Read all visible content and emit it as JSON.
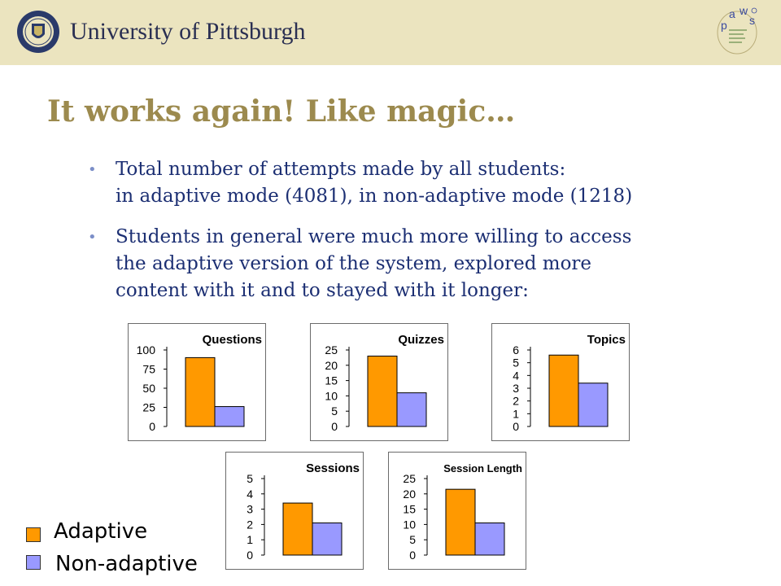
{
  "header": {
    "university": "University of Pittsburgh",
    "seal_icon": "university-seal-icon",
    "logo_icon": "paws-logo-icon",
    "logo_letters": [
      "p",
      "a",
      "w",
      "s"
    ]
  },
  "slide": {
    "title": "It works again! Like magic…",
    "bullets": [
      {
        "lines": [
          "Total number of attempts made by all students:",
          "in adaptive mode (4081), in non-adaptive mode (1218)"
        ]
      },
      {
        "lines": [
          "Students in general were much more willing to access",
          "the adaptive version of the system, explored more",
          "content with it and to stayed with it longer:"
        ]
      }
    ]
  },
  "colors": {
    "adaptive": "#ff9900",
    "non_adaptive": "#9999ff",
    "title": "#9c8a4e",
    "body_text": "#1c2f73",
    "header_bg": "#ebe4bf"
  },
  "legend": {
    "items": [
      "Adaptive",
      "Non-adaptive"
    ]
  },
  "chart_data": [
    {
      "type": "bar",
      "title": "Questions",
      "categories": [
        "Adaptive",
        "Non-adaptive"
      ],
      "values": [
        90,
        26
      ],
      "yticks": [
        0,
        25,
        50,
        75,
        100
      ],
      "ylim": [
        0,
        100
      ]
    },
    {
      "type": "bar",
      "title": "Quizzes",
      "categories": [
        "Adaptive",
        "Non-adaptive"
      ],
      "values": [
        23,
        11
      ],
      "yticks": [
        0,
        5,
        10,
        15,
        20,
        25
      ],
      "ylim": [
        0,
        25
      ]
    },
    {
      "type": "bar",
      "title": "Topics",
      "categories": [
        "Adaptive",
        "Non-adaptive"
      ],
      "values": [
        5.6,
        3.4
      ],
      "yticks": [
        0,
        1,
        2,
        3,
        4,
        5,
        6
      ],
      "ylim": [
        0,
        6
      ]
    },
    {
      "type": "bar",
      "title": "Sessions",
      "categories": [
        "Adaptive",
        "Non-adaptive"
      ],
      "values": [
        3.4,
        2.1
      ],
      "yticks": [
        0,
        1,
        2,
        3,
        4,
        5
      ],
      "ylim": [
        0,
        5
      ]
    },
    {
      "type": "bar",
      "title": "Session Length",
      "categories": [
        "Adaptive",
        "Non-adaptive"
      ],
      "values": [
        21.5,
        10.5
      ],
      "yticks": [
        0,
        5,
        10,
        15,
        20,
        25
      ],
      "ylim": [
        0,
        25
      ]
    }
  ]
}
